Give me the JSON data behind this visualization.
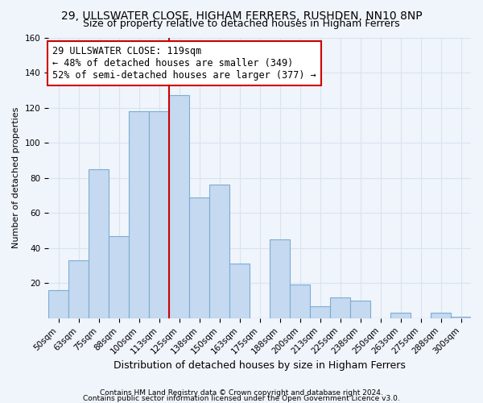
{
  "title1": "29, ULLSWATER CLOSE, HIGHAM FERRERS, RUSHDEN, NN10 8NP",
  "title2": "Size of property relative to detached houses in Higham Ferrers",
  "xlabel": "Distribution of detached houses by size in Higham Ferrers",
  "ylabel": "Number of detached properties",
  "categories": [
    "50sqm",
    "63sqm",
    "75sqm",
    "88sqm",
    "100sqm",
    "113sqm",
    "125sqm",
    "138sqm",
    "150sqm",
    "163sqm",
    "175sqm",
    "188sqm",
    "200sqm",
    "213sqm",
    "225sqm",
    "238sqm",
    "250sqm",
    "263sqm",
    "275sqm",
    "288sqm",
    "300sqm"
  ],
  "values": [
    16,
    33,
    85,
    47,
    118,
    118,
    127,
    69,
    76,
    31,
    0,
    45,
    19,
    7,
    12,
    10,
    0,
    3,
    0,
    3,
    1
  ],
  "bar_color": "#c5d9f0",
  "bar_edgecolor": "#7aadd4",
  "red_line_index": 6,
  "annotation_line1": "29 ULLSWATER CLOSE: 119sqm",
  "annotation_line2": "← 48% of detached houses are smaller (349)",
  "annotation_line3": "52% of semi-detached houses are larger (377) →",
  "footer1": "Contains HM Land Registry data © Crown copyright and database right 2024.",
  "footer2": "Contains public sector information licensed under the Open Government Licence v3.0.",
  "background_color": "#f0f4fb",
  "grid_color": "#d8e4f0",
  "annotation_box_facecolor": "#ffffff",
  "annotation_box_edgecolor": "#cc0000",
  "title_fontsize": 10,
  "subtitle_fontsize": 9,
  "xlabel_fontsize": 9,
  "ylabel_fontsize": 8,
  "tick_fontsize": 7.5,
  "annotation_fontsize": 8.5,
  "footer_fontsize": 6.5
}
